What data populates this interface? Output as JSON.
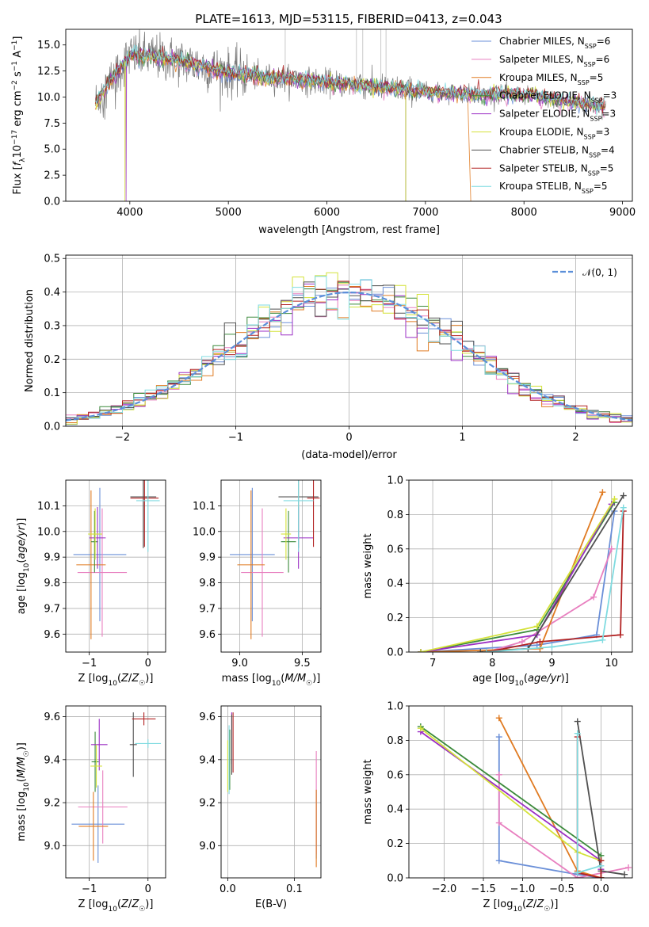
{
  "figure_title": "PLATE=1613, MJD=53115, FIBERID=0413, z=0.043",
  "models": [
    {
      "name": "Chabrier MILES",
      "nssp": "6",
      "color": "#6a8fd8"
    },
    {
      "name": "Salpeter MILES",
      "nssp": "6",
      "color": "#e87fbf"
    },
    {
      "name": "Kroupa MILES",
      "nssp": "5",
      "color": "#e07b22"
    },
    {
      "name": "Chabrier ELODIE",
      "nssp": "3",
      "color": "#3b8a3b"
    },
    {
      "name": "Salpeter ELODIE",
      "nssp": "3",
      "color": "#9b2fc4"
    },
    {
      "name": "Kroupa ELODIE",
      "nssp": "3",
      "color": "#d4e23a"
    },
    {
      "name": "Chabrier STELIB",
      "nssp": "4",
      "color": "#505050"
    },
    {
      "name": "Salpeter STELIB",
      "nssp": "5",
      "color": "#b22222"
    },
    {
      "name": "Kroupa STELIB",
      "nssp": "5",
      "color": "#7fdbe0"
    }
  ],
  "legend_suffix": {
    "prefix": "N",
    "sub": "SSP",
    "eq": "="
  },
  "chart_data": [
    {
      "type": "line",
      "id": "spectrum",
      "xlabel": "wavelength [Angstrom, rest frame]",
      "ylabel": "Flux [f_λ 10^-17 erg cm^-2 s^-1 A^-1]",
      "xlim": [
        3350,
        9100
      ],
      "ylim": [
        0,
        16.5
      ],
      "xticks": [
        "4000",
        "5000",
        "6000",
        "7000",
        "8000",
        "9000"
      ],
      "yticks": [
        "0.0",
        "2.5",
        "5.0",
        "7.5",
        "10.0",
        "12.5",
        "15.0"
      ],
      "data_anchor_wavelength": [
        3650,
        3800,
        4000,
        4300,
        4600,
        5000,
        5500,
        6000,
        6500,
        7000,
        7500,
        8000,
        8500,
        8800
      ],
      "data_anchor_flux": [
        9.5,
        11.5,
        14.0,
        13.8,
        13.3,
        12.3,
        11.8,
        11.4,
        11.0,
        10.5,
        10.3,
        10.2,
        9.5,
        9.0
      ],
      "legend_position": "top-right"
    },
    {
      "type": "step",
      "id": "residuals",
      "xlabel": "(data-model)/error",
      "ylabel": "Normed distribution",
      "xlim": [
        -2.5,
        2.5
      ],
      "ylim": [
        0,
        0.51
      ],
      "xticks": [
        "−2",
        "−1",
        "0",
        "1",
        "2"
      ],
      "yticks": [
        "0.0",
        "0.1",
        "0.2",
        "0.3",
        "0.4",
        "0.5"
      ],
      "gaussian_label": "𝒩(0, 1)",
      "gaussian_color": "#5b8fd9",
      "grid": true,
      "legend_position": "top-right"
    },
    {
      "type": "errorbar",
      "id": "z-vs-age",
      "xlabel": "Z [log10(Z/Z☉)]",
      "ylabel": "age [log10(age/yr)]",
      "xlim": [
        -1.4,
        0.3
      ],
      "ylim": [
        9.53,
        10.2
      ],
      "xticks": [
        "−1",
        "0"
      ],
      "yticks": [
        "9.6",
        "9.7",
        "9.8",
        "9.9",
        "10.0",
        "10.1"
      ],
      "points": [
        {
          "x": -0.82,
          "xerr": 0.45,
          "y": 9.91,
          "yerr": 0.26
        },
        {
          "x": -0.78,
          "xerr": 0.42,
          "y": 9.84,
          "yerr": 0.25
        },
        {
          "x": -0.97,
          "xerr": 0.25,
          "y": 9.87,
          "yerr": 0.29
        },
        {
          "x": -0.91,
          "xerr": 0.06,
          "y": 9.96,
          "yerr": 0.12
        },
        {
          "x": -0.86,
          "xerr": 0.14,
          "y": 9.975,
          "yerr": 0.12
        },
        {
          "x": -0.9,
          "xerr": 0.12,
          "y": 9.99,
          "yerr": 0.1
        },
        {
          "x": -0.08,
          "xerr": 0.22,
          "y": 10.135,
          "yerr": 0.2
        },
        {
          "x": -0.06,
          "xerr": 0.24,
          "y": 10.13,
          "yerr": 0.19
        },
        {
          "x": 0.0,
          "xerr": 0.2,
          "y": 10.12,
          "yerr": 0.2
        }
      ]
    },
    {
      "type": "errorbar",
      "id": "mass-vs-age",
      "xlabel": "mass [log10(M/M☉)]",
      "ylabel": "",
      "xlim": [
        8.85,
        9.65
      ],
      "ylim": [
        9.53,
        10.2
      ],
      "xticks": [
        "9.0",
        "9.5"
      ],
      "yticks": [
        "9.6",
        "9.7",
        "9.8",
        "9.9",
        "10.0",
        "10.1"
      ],
      "points": [
        {
          "x": 9.1,
          "xerr": 0.18,
          "y": 9.91,
          "yerr": 0.26
        },
        {
          "x": 9.18,
          "xerr": 0.17,
          "y": 9.84,
          "yerr": 0.25
        },
        {
          "x": 9.09,
          "xerr": 0.11,
          "y": 9.87,
          "yerr": 0.29
        },
        {
          "x": 9.39,
          "xerr": 0.06,
          "y": 9.96,
          "yerr": 0.12
        },
        {
          "x": 9.47,
          "xerr": 0.12,
          "y": 9.975,
          "yerr": 0.12
        },
        {
          "x": 9.37,
          "xerr": 0.04,
          "y": 9.99,
          "yerr": 0.1
        },
        {
          "x": 9.47,
          "xerr": 0.16,
          "y": 10.135,
          "yerr": 0.2
        },
        {
          "x": 9.59,
          "xerr": 0.05,
          "y": 10.13,
          "yerr": 0.19
        },
        {
          "x": 9.47,
          "xerr": 0.12,
          "y": 10.12,
          "yerr": 0.2
        }
      ]
    },
    {
      "type": "line",
      "id": "age-vs-weight",
      "xlabel": "age [log10(age/yr)]",
      "ylabel": "mass weight",
      "xlim": [
        6.6,
        10.35
      ],
      "ylim": [
        0,
        1.0
      ],
      "xticks": [
        "7",
        "8",
        "9",
        "10"
      ],
      "yticks": [
        "0.0",
        "0.2",
        "0.4",
        "0.6",
        "0.8",
        "1.0"
      ],
      "grid": true,
      "series": [
        {
          "x": [
            6.8,
            8.75,
            9.75,
            10.05
          ],
          "y": [
            0.0,
            0.04,
            0.1,
            0.82
          ]
        },
        {
          "x": [
            7.9,
            8.5,
            9.7,
            10.0
          ],
          "y": [
            0.0,
            0.06,
            0.32,
            0.6
          ]
        },
        {
          "x": [
            6.8,
            8.8,
            9.85
          ],
          "y": [
            0.0,
            0.02,
            0.93
          ]
        },
        {
          "x": [
            6.8,
            8.75,
            10.05
          ],
          "y": [
            0.0,
            0.13,
            0.87
          ]
        },
        {
          "x": [
            6.8,
            8.75,
            10.0
          ],
          "y": [
            0.0,
            0.1,
            0.86
          ]
        },
        {
          "x": [
            6.8,
            8.75,
            10.05
          ],
          "y": [
            0.0,
            0.15,
            0.89
          ]
        },
        {
          "x": [
            7.8,
            8.6,
            10.2
          ],
          "y": [
            0.0,
            0.02,
            0.91
          ]
        },
        {
          "x": [
            7.9,
            8.8,
            10.15,
            10.2
          ],
          "y": [
            0.0,
            0.06,
            0.1,
            0.82
          ]
        },
        {
          "x": [
            7.9,
            9.0,
            9.85,
            10.2
          ],
          "y": [
            0.0,
            0.03,
            0.07,
            0.84
          ]
        }
      ]
    },
    {
      "type": "errorbar",
      "id": "z-vs-mass",
      "xlabel": "Z [log10(Z/Z☉)]",
      "ylabel": "mass [log10(M/M☉)]",
      "xlim": [
        -1.4,
        0.3
      ],
      "ylim": [
        8.85,
        9.65
      ],
      "xticks": [
        "−1",
        "0"
      ],
      "yticks": [
        "9.0",
        "9.2",
        "9.4",
        "9.6"
      ],
      "points": [
        {
          "x": -0.85,
          "xerr": 0.45,
          "y": 9.1,
          "yerr": 0.18
        },
        {
          "x": -0.77,
          "xerr": 0.42,
          "y": 9.18,
          "yerr": 0.17
        },
        {
          "x": -0.93,
          "xerr": 0.25,
          "y": 9.09,
          "yerr": 0.16
        },
        {
          "x": -0.9,
          "xerr": 0.06,
          "y": 9.39,
          "yerr": 0.14
        },
        {
          "x": -0.83,
          "xerr": 0.14,
          "y": 9.47,
          "yerr": 0.12
        },
        {
          "x": -0.88,
          "xerr": 0.1,
          "y": 9.37,
          "yerr": 0.1
        },
        {
          "x": -0.25,
          "xerr": 0.06,
          "y": 9.47,
          "yerr": 0.15
        },
        {
          "x": -0.07,
          "xerr": 0.2,
          "y": 9.59,
          "yerr": 0.03
        },
        {
          "x": 0.0,
          "xerr": 0.22,
          "y": 9.475,
          "yerr": 0.02
        }
      ]
    },
    {
      "type": "errorbar",
      "id": "ebv-vs-mass",
      "xlabel": "E(B-V)",
      "ylabel": "",
      "xlim": [
        -0.01,
        0.14
      ],
      "ylim": [
        8.85,
        9.65
      ],
      "xticks": [
        "0.0",
        "0.1"
      ],
      "yticks": [
        "9.0",
        "9.2",
        "9.4",
        "9.6"
      ],
      "points": [
        {
          "x": 0.133,
          "xerr": 0.0,
          "y": 9.1,
          "yerr": 0.16
        },
        {
          "x": 0.133,
          "xerr": 0.0,
          "y": 9.2,
          "yerr": 0.24
        },
        {
          "x": 0.133,
          "xerr": 0.0,
          "y": 9.08,
          "yerr": 0.18
        },
        {
          "x": 0.003,
          "xerr": 0.0,
          "y": 9.4,
          "yerr": 0.14
        },
        {
          "x": 0.006,
          "xerr": 0.0,
          "y": 9.5,
          "yerr": 0.12
        },
        {
          "x": 0.0,
          "xerr": 0.0,
          "y": 9.37,
          "yerr": 0.12
        },
        {
          "x": 0.006,
          "xerr": 0.0,
          "y": 9.47,
          "yerr": 0.14
        },
        {
          "x": 0.008,
          "xerr": 0.0,
          "y": 9.48,
          "yerr": 0.14
        },
        {
          "x": 0.002,
          "xerr": 0.0,
          "y": 9.4,
          "yerr": 0.16
        }
      ]
    },
    {
      "type": "line",
      "id": "z-vs-weight",
      "xlabel": "Z [log10(Z/Z☉)]",
      "ylabel": "mass weight",
      "xlim": [
        -2.45,
        0.4
      ],
      "ylim": [
        0,
        1.0
      ],
      "xticks": [
        "−2.0",
        "−1.5",
        "−1.0",
        "−0.5",
        "0.0",
        "0.5"
      ],
      "yticks": [
        "0.0",
        "0.2",
        "0.4",
        "0.6",
        "0.8",
        "1.0"
      ],
      "grid": true,
      "series": [
        {
          "x": [
            -1.3,
            -1.3,
            -0.3,
            0.0
          ],
          "y": [
            0.82,
            0.1,
            0.02,
            0.0
          ]
        },
        {
          "x": [
            -1.3,
            -1.3,
            -0.3,
            0.35
          ],
          "y": [
            0.6,
            0.32,
            0.0,
            0.06
          ]
        },
        {
          "x": [
            -1.3,
            -0.3,
            0.0
          ],
          "y": [
            0.93,
            0.04,
            0.0
          ]
        },
        {
          "x": [
            -2.3,
            0.0,
            0.0
          ],
          "y": [
            0.88,
            0.13,
            0.0
          ]
        },
        {
          "x": [
            -2.3,
            0.0,
            0.0
          ],
          "y": [
            0.85,
            0.1,
            0.05
          ]
        },
        {
          "x": [
            -2.3,
            -0.3,
            0.0
          ],
          "y": [
            0.87,
            0.15,
            0.1
          ]
        },
        {
          "x": [
            -0.3,
            0.0,
            0.3
          ],
          "y": [
            0.91,
            0.04,
            0.02
          ]
        },
        {
          "x": [
            -0.3,
            -0.3,
            0.0,
            0.0
          ],
          "y": [
            0.82,
            0.03,
            0.0,
            0.1
          ]
        },
        {
          "x": [
            -0.3,
            -0.3,
            0.0
          ],
          "y": [
            0.84,
            0.03,
            0.07
          ]
        }
      ]
    }
  ]
}
